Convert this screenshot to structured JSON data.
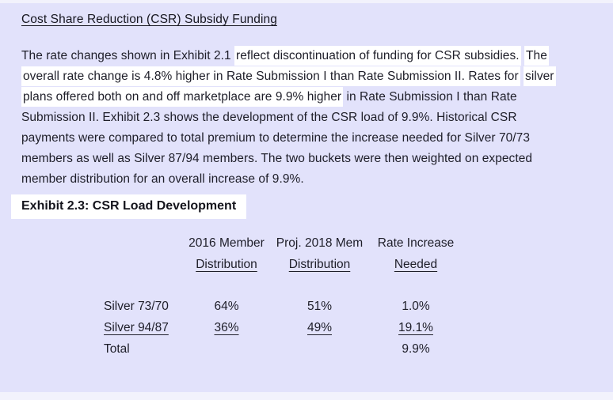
{
  "page": {
    "background_color": "#e2e2fb",
    "highlight_color": "#ffffff",
    "text_color": "#1e1e29"
  },
  "title": "Cost Share Reduction (CSR) Subsidy Funding",
  "paragraph": {
    "lines": [
      {
        "segments": [
          {
            "text": "The rate changes shown in Exhibit 2.1 ",
            "hl": false
          },
          {
            "text": "reflect discontinuation of funding for CSR subsidies.",
            "hl": true
          },
          {
            "text": " ",
            "hl": false
          },
          {
            "text": "The",
            "hl": true
          }
        ]
      },
      {
        "segments": [
          {
            "text": "overall rate change is 4.8% higher in Rate Submission I than Rate Submission II. Rates for",
            "hl": true
          },
          {
            "text": " ",
            "hl": false
          },
          {
            "text": "silver",
            "hl": true
          }
        ]
      },
      {
        "segments": [
          {
            "text": "plans offered both on and off marketplace are 9.9% higher",
            "hl": true
          },
          {
            "text": " in Rate Submission I than Rate",
            "hl": false
          }
        ]
      },
      {
        "segments": [
          {
            "text": "Submission II. Exhibit 2.3 shows the development of the CSR load of 9.9%. Historical CSR",
            "hl": false
          }
        ]
      },
      {
        "segments": [
          {
            "text": "payments were compared to total premium to determine the increase needed for Silver 70/73",
            "hl": false
          }
        ]
      },
      {
        "segments": [
          {
            "text": "members as well as Silver 87/94 members. The two buckets were then weighted on expected",
            "hl": false
          }
        ]
      },
      {
        "segments": [
          {
            "text": "member distribution for an overall increase of 9.9%.",
            "hl": false
          }
        ]
      }
    ]
  },
  "exhibit_heading": "Exhibit 2.3: CSR Load Development",
  "table": {
    "columns": [
      {
        "line1": "2016 Member",
        "line2": "Distribution"
      },
      {
        "line1": "Proj. 2018 Mem",
        "line2": "Distribution"
      },
      {
        "line1": "Rate Increase",
        "line2": "Needed"
      }
    ],
    "rows": [
      {
        "label": "Silver 73/70",
        "c1": "64%",
        "c2": "51%",
        "c3": "1.0%"
      },
      {
        "label": "Silver 94/87",
        "c1": "36%",
        "c2": "49%",
        "c3": "19.1%"
      },
      {
        "label": "Total",
        "c1": "",
        "c2": "",
        "c3": "9.9%"
      }
    ]
  }
}
